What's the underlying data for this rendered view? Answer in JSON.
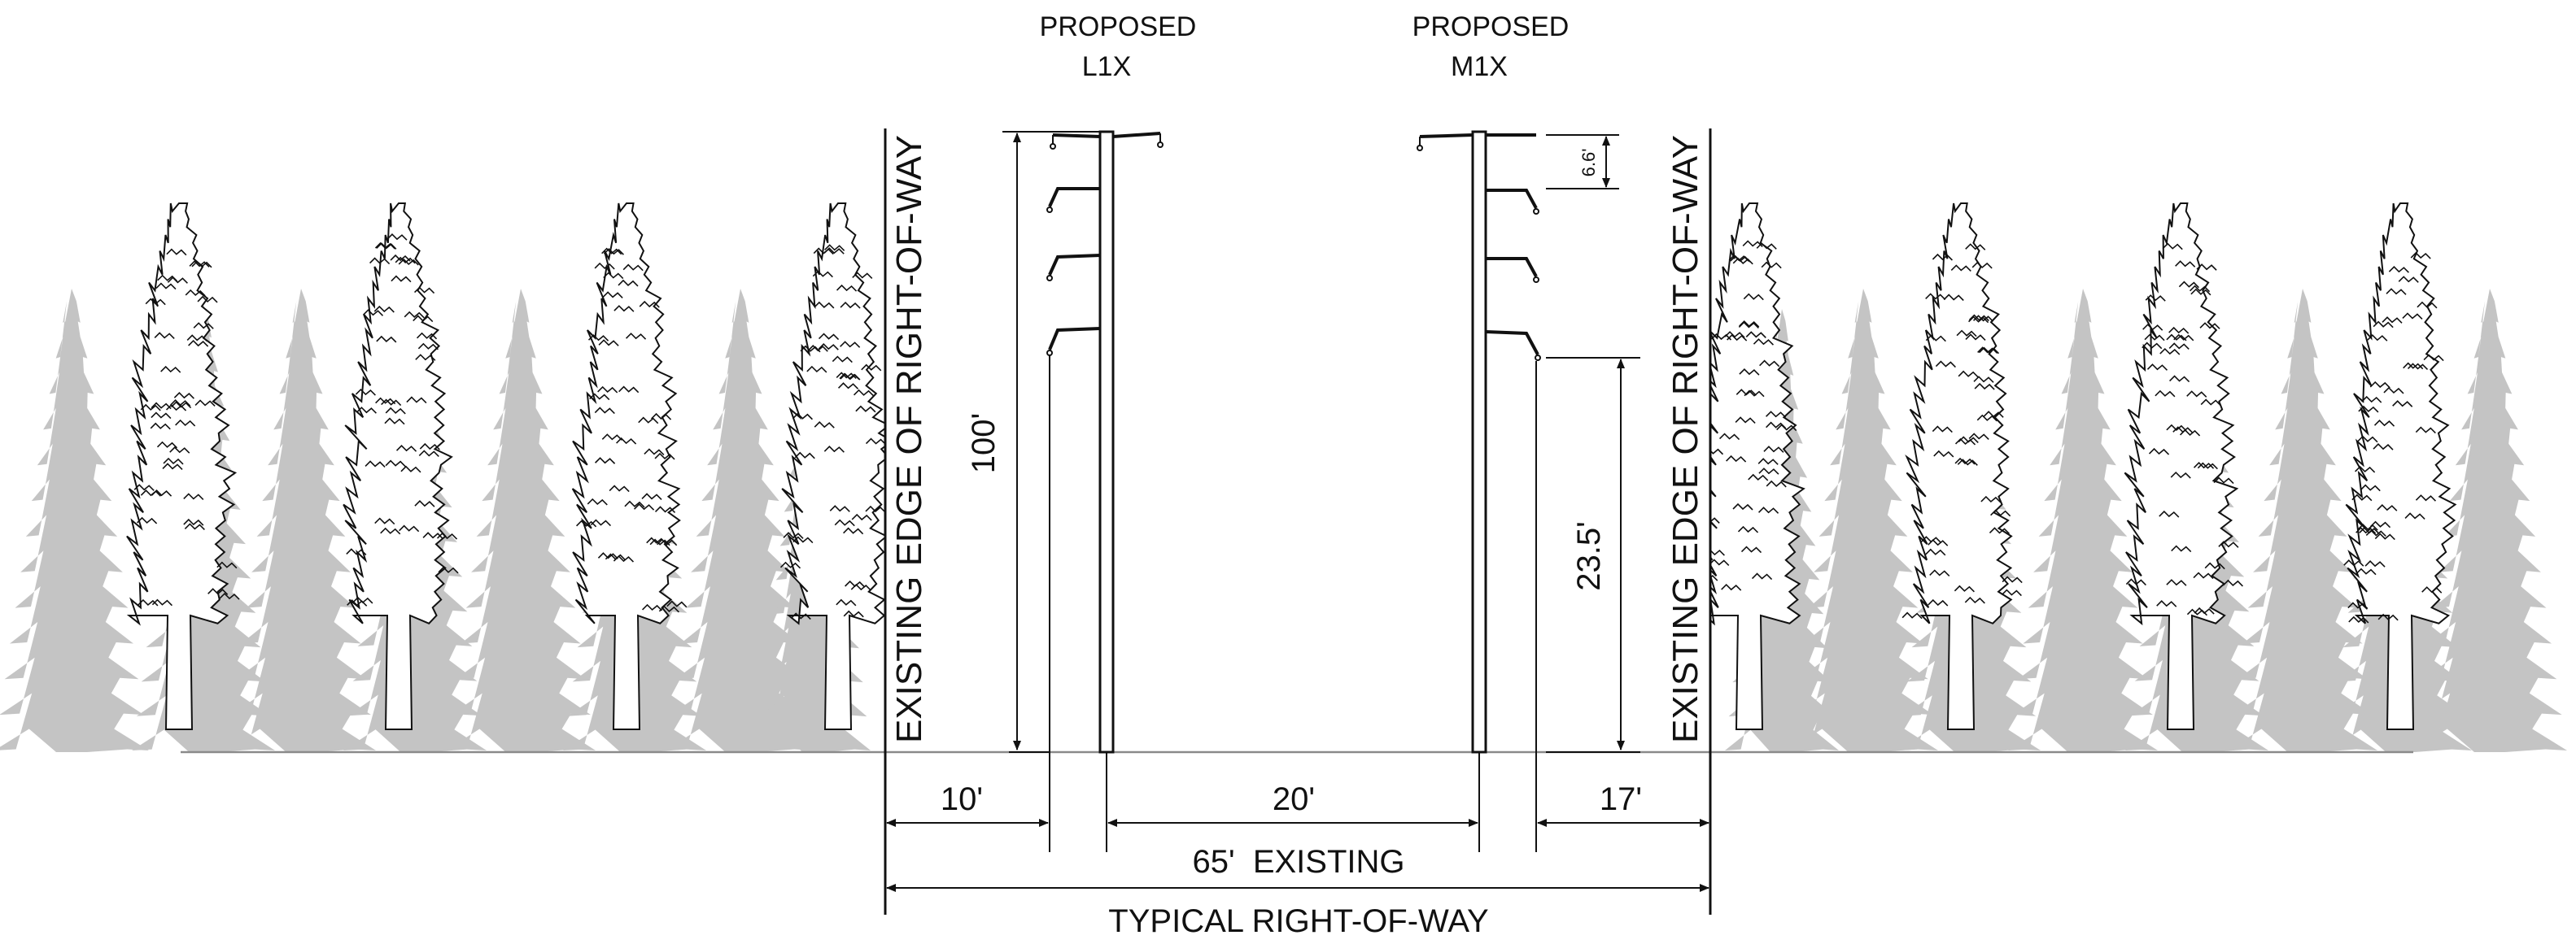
{
  "structures": {
    "left": {
      "line1": "PROPOSED",
      "line2": "L1X"
    },
    "right": {
      "line1": "PROPOSED",
      "line2": "M1X"
    }
  },
  "row_edges": {
    "left": "EXISTING EDGE OF RIGHT-OF-WAY",
    "right": "EXISTING EDGE OF RIGHT-OF-WAY"
  },
  "dimensions": {
    "pole_height": "100'",
    "arm_spacing": "6.6'",
    "side_clearance": "23.5'",
    "left_offset": "10'",
    "pole_separation": "20'",
    "right_offset": "17'",
    "existing_width": "65'  EXISTING",
    "typical_row": "TYPICAL RIGHT-OF-WAY"
  },
  "colors": {
    "ink": "#111111",
    "background_trees": "#c4c4c4",
    "ground_line": "#8a8a8a"
  }
}
